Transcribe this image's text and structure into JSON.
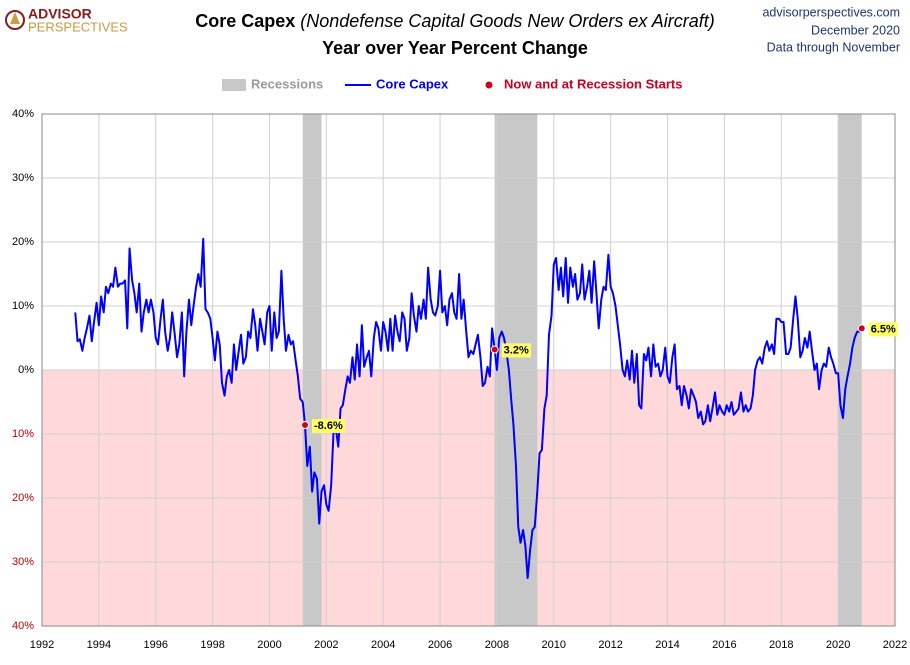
{
  "header": {
    "logo": [
      "ADVISOR",
      "PERSPECTIVES"
    ],
    "source": [
      "advisorperspectives.com",
      "December 2020",
      "Data through November"
    ]
  },
  "chart_data": {
    "type": "line",
    "title": "Core Capex",
    "title_italic": "(Nondefense Capital Goods New Orders ex Aircraft)",
    "subtitle": "Year over Year Percent Change",
    "x": [
      1993.17,
      1993.25,
      1993.33,
      1993.42,
      1993.5,
      1993.58,
      1993.67,
      1993.75,
      1993.83,
      1993.92,
      1994.0,
      1994.08,
      1994.17,
      1994.25,
      1994.33,
      1994.42,
      1994.5,
      1994.58,
      1994.67,
      1994.75,
      1994.83,
      1994.92,
      1995.0,
      1995.08,
      1995.17,
      1995.25,
      1995.33,
      1995.42,
      1995.5,
      1995.58,
      1995.67,
      1995.75,
      1995.83,
      1995.92,
      1996.0,
      1996.08,
      1996.17,
      1996.25,
      1996.33,
      1996.42,
      1996.5,
      1996.58,
      1996.67,
      1996.75,
      1996.83,
      1996.92,
      1997.0,
      1997.08,
      1997.17,
      1997.25,
      1997.33,
      1997.42,
      1997.5,
      1997.58,
      1997.67,
      1997.75,
      1997.83,
      1997.92,
      1998.0,
      1998.08,
      1998.17,
      1998.25,
      1998.33,
      1998.42,
      1998.5,
      1998.58,
      1998.67,
      1998.75,
      1998.83,
      1998.92,
      1999.0,
      1999.08,
      1999.17,
      1999.25,
      1999.33,
      1999.42,
      1999.5,
      1999.58,
      1999.67,
      1999.75,
      1999.83,
      1999.92,
      2000.0,
      2000.08,
      2000.17,
      2000.25,
      2000.33,
      2000.42,
      2000.5,
      2000.58,
      2000.67,
      2000.75,
      2000.83,
      2000.92,
      2001.0,
      2001.08,
      2001.17,
      2001.25,
      2001.33,
      2001.42,
      2001.5,
      2001.58,
      2001.67,
      2001.75,
      2001.83,
      2001.92,
      2002.0,
      2002.08,
      2002.17,
      2002.25,
      2002.33,
      2002.42,
      2002.5,
      2002.58,
      2002.67,
      2002.75,
      2002.83,
      2002.92,
      2003.0,
      2003.08,
      2003.17,
      2003.25,
      2003.33,
      2003.42,
      2003.5,
      2003.58,
      2003.67,
      2003.75,
      2003.83,
      2003.92,
      2004.0,
      2004.08,
      2004.17,
      2004.25,
      2004.33,
      2004.42,
      2004.5,
      2004.58,
      2004.67,
      2004.75,
      2004.83,
      2004.92,
      2005.0,
      2005.08,
      2005.17,
      2005.25,
      2005.33,
      2005.42,
      2005.5,
      2005.58,
      2005.67,
      2005.75,
      2005.83,
      2005.92,
      2006.0,
      2006.08,
      2006.17,
      2006.25,
      2006.33,
      2006.42,
      2006.5,
      2006.58,
      2006.67,
      2006.75,
      2006.83,
      2006.92,
      2007.0,
      2007.08,
      2007.17,
      2007.25,
      2007.33,
      2007.42,
      2007.5,
      2007.58,
      2007.67,
      2007.75,
      2007.83,
      2007.92,
      2008.0,
      2008.08,
      2008.17,
      2008.25,
      2008.33,
      2008.42,
      2008.5,
      2008.58,
      2008.67,
      2008.75,
      2008.83,
      2008.92,
      2009.0,
      2009.08,
      2009.17,
      2009.25,
      2009.33,
      2009.42,
      2009.5,
      2009.58,
      2009.67,
      2009.75,
      2009.83,
      2009.92,
      2010.0,
      2010.08,
      2010.17,
      2010.25,
      2010.33,
      2010.42,
      2010.5,
      2010.58,
      2010.67,
      2010.75,
      2010.83,
      2010.92,
      2011.0,
      2011.08,
      2011.17,
      2011.25,
      2011.33,
      2011.42,
      2011.5,
      2011.58,
      2011.67,
      2011.75,
      2011.83,
      2011.92,
      2012.0,
      2012.08,
      2012.17,
      2012.25,
      2012.33,
      2012.42,
      2012.5,
      2012.58,
      2012.67,
      2012.75,
      2012.83,
      2012.92,
      2013.0,
      2013.08,
      2013.17,
      2013.25,
      2013.33,
      2013.42,
      2013.5,
      2013.58,
      2013.67,
      2013.75,
      2013.83,
      2013.92,
      2014.0,
      2014.08,
      2014.17,
      2014.25,
      2014.33,
      2014.42,
      2014.5,
      2014.58,
      2014.67,
      2014.75,
      2014.83,
      2014.92,
      2015.0,
      2015.08,
      2015.17,
      2015.25,
      2015.33,
      2015.42,
      2015.5,
      2015.58,
      2015.67,
      2015.75,
      2015.83,
      2015.92,
      2016.0,
      2016.08,
      2016.17,
      2016.25,
      2016.33,
      2016.42,
      2016.5,
      2016.58,
      2016.67,
      2016.75,
      2016.83,
      2016.92,
      2017.0,
      2017.08,
      2017.17,
      2017.25,
      2017.33,
      2017.42,
      2017.5,
      2017.58,
      2017.67,
      2017.75,
      2017.83,
      2017.92,
      2018.0,
      2018.08,
      2018.17,
      2018.25,
      2018.33,
      2018.42,
      2018.5,
      2018.58,
      2018.67,
      2018.75,
      2018.83,
      2018.92,
      2019.0,
      2019.08,
      2019.17,
      2019.25,
      2019.33,
      2019.42,
      2019.5,
      2019.58,
      2019.67,
      2019.75,
      2019.83,
      2019.92,
      2020.0,
      2020.08,
      2020.17,
      2020.25,
      2020.33,
      2020.42,
      2020.5,
      2020.58,
      2020.67,
      2020.75,
      2020.83
    ],
    "series": [
      {
        "name": "Core Capex",
        "color": "#0000ff",
        "values": [
          9,
          4.5,
          4.8,
          3,
          5,
          6.5,
          8.5,
          4.5,
          7.5,
          10.5,
          7,
          11.5,
          9,
          13,
          12,
          13.5,
          13,
          16,
          13,
          13.5,
          13.5,
          14,
          6.5,
          19,
          14,
          12,
          9,
          13.5,
          6,
          9,
          11,
          9,
          11,
          9,
          5,
          4,
          8,
          11,
          6,
          3,
          5,
          9,
          5.5,
          2,
          4,
          9,
          -1,
          6,
          11,
          7,
          10,
          13,
          15,
          13,
          20.5,
          9.5,
          9,
          8,
          5,
          1.5,
          6,
          4,
          -2,
          -4,
          -1,
          0,
          -2,
          4,
          0,
          3,
          5.5,
          1,
          2,
          6,
          5,
          9.5,
          7,
          3,
          8,
          6,
          4,
          9,
          10,
          3,
          9,
          5,
          6,
          15.5,
          8,
          3,
          5.5,
          4,
          4.5,
          1.5,
          -1,
          -4.5,
          -5,
          -8.6,
          -15,
          -12,
          -19,
          -16,
          -17,
          -24,
          -19,
          -18,
          -21,
          -22,
          -18,
          -10,
          -9,
          -12,
          -6,
          -5.5,
          -3,
          -1,
          -2,
          2,
          -1.5,
          4,
          -1,
          7,
          0.5,
          2,
          3,
          -1,
          5,
          7.5,
          6.5,
          3,
          7.5,
          6,
          3,
          8,
          3,
          8.5,
          6,
          4.5,
          9,
          8,
          3,
          5,
          12,
          8.5,
          6,
          10,
          8,
          11,
          8,
          16,
          11,
          9,
          8.5,
          10,
          15.5,
          9,
          10,
          7,
          11,
          12,
          9,
          8,
          15,
          8,
          11,
          6,
          2,
          3,
          2.5,
          4,
          5.5,
          2,
          -2.5,
          -2,
          0.5,
          -1,
          6.5,
          3.2,
          0,
          5,
          6,
          5,
          3,
          0,
          -4.5,
          -8.5,
          -15,
          -24.5,
          -27,
          -25,
          -27.5,
          -32.5,
          -28,
          -25,
          -24.5,
          -19,
          -13,
          -12.5,
          -6,
          -4,
          5.5,
          8.5,
          16.5,
          17.5,
          12.5,
          16,
          11.5,
          17.5,
          10.5,
          16,
          13,
          15,
          11,
          12,
          16.5,
          11,
          13,
          15.5,
          10.5,
          17,
          12,
          6.5,
          11,
          13,
          12.5,
          18,
          13,
          12,
          10,
          7,
          4,
          0,
          -1,
          1.5,
          -1.5,
          3,
          -2,
          2.5,
          -5.5,
          -6,
          2.5,
          1.5,
          3.5,
          -1,
          4,
          0.5,
          1,
          -1,
          0,
          3.5,
          -1,
          -2,
          2,
          4,
          -3,
          -2.5,
          -5.5,
          -2.5,
          -4,
          -6,
          -3,
          -4,
          -5,
          -7.5,
          -6.5,
          -8.5,
          -8,
          -5.5,
          -8,
          -6,
          -3.5,
          -7,
          -5.5,
          -6.5,
          -7,
          -5.5,
          -6.5,
          -5,
          -7,
          -6.5,
          -6,
          -3.5,
          -6.5,
          -5.5,
          -6.5,
          -6,
          -4,
          0,
          1.5,
          2,
          1,
          3.5,
          4.5,
          3,
          4,
          2.5,
          8,
          8,
          7.5,
          7.5,
          2.5,
          2.5,
          3.5,
          8,
          11.5,
          8,
          2,
          3,
          5,
          3.5,
          6,
          3,
          0,
          1,
          -3,
          0,
          1,
          0.5,
          3.5,
          2,
          1,
          -0.5,
          -0.5,
          -5.5,
          -7.5,
          -3,
          -1,
          1,
          3.5,
          5,
          6,
          6,
          6.5
        ]
      }
    ],
    "recessions": {
      "name": "Recessions",
      "color": "#c8c8c8",
      "spans": [
        [
          2001.17,
          2001.83
        ],
        [
          2007.92,
          2009.42
        ],
        [
          2020.0,
          2020.83
        ]
      ]
    },
    "markers": {
      "name": "Now and at Recession Starts",
      "color": "#cc0022",
      "x": [
        2001.25,
        2007.92,
        2020.83
      ],
      "values": [
        -8.6,
        3.2,
        6.5
      ],
      "value_labels": [
        "-8.6%",
        "3.2%",
        "6.5%"
      ]
    },
    "xlim": [
      1992,
      2022
    ],
    "xticks": [
      1992,
      1994,
      1996,
      1998,
      2000,
      2002,
      2004,
      2006,
      2008,
      2010,
      2012,
      2014,
      2016,
      2018,
      2020,
      2022
    ],
    "ylim": [
      -40,
      40
    ],
    "yticks": [
      {
        "value": -40,
        "label": "40%"
      },
      {
        "value": -30,
        "label": "30%"
      },
      {
        "value": -20,
        "label": "20%"
      },
      {
        "value": -10,
        "label": "10%"
      },
      {
        "value": 0,
        "label": "0%"
      },
      {
        "value": 10,
        "label": "10%"
      },
      {
        "value": 20,
        "label": "20%"
      },
      {
        "value": 30,
        "label": "30%"
      },
      {
        "value": 40,
        "label": "40%"
      }
    ],
    "negative_tick_color": "#c00000",
    "negative_fill": "#ffd9d9",
    "grid": true
  }
}
